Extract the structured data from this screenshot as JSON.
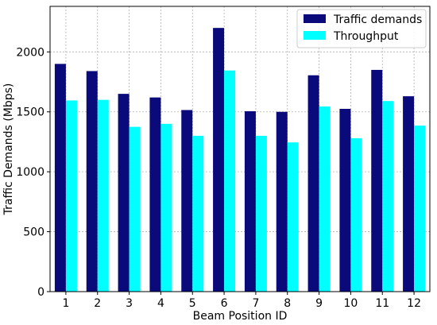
{
  "chart_data": {
    "type": "bar",
    "xlabel": "Beam Position ID",
    "ylabel": "Traffic Demands (Mbps)",
    "categories": [
      "1",
      "2",
      "3",
      "4",
      "5",
      "6",
      "7",
      "8",
      "9",
      "10",
      "11",
      "12"
    ],
    "series": [
      {
        "name": "Traffic demands",
        "color": "#0a0a7a",
        "values": [
          1900,
          1840,
          1650,
          1620,
          1515,
          2200,
          1505,
          1500,
          1805,
          1525,
          1850,
          1630
        ]
      },
      {
        "name": "Throughput",
        "color": "#00ffff",
        "values": [
          1595,
          1600,
          1375,
          1400,
          1300,
          1845,
          1300,
          1245,
          1545,
          1280,
          1590,
          1385
        ]
      }
    ],
    "ylim": [
      0,
      2380
    ],
    "yticks": [
      0,
      500,
      1000,
      1500,
      2000
    ],
    "grid": true,
    "legend_position": "top-right"
  }
}
